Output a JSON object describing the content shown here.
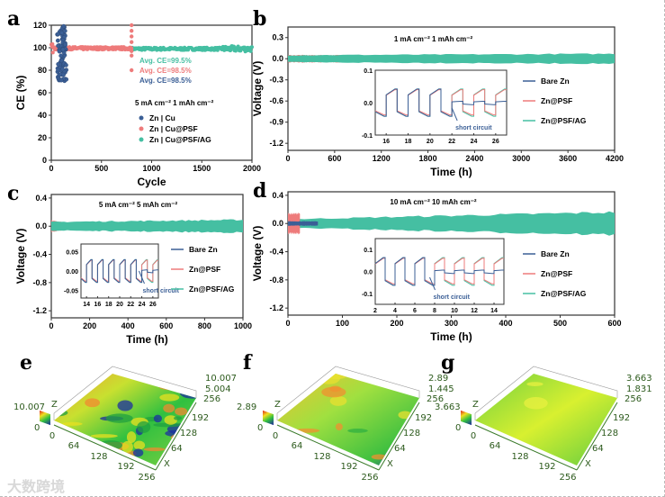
{
  "watermark": "大数跨境",
  "colors": {
    "bare": "#3b5f96",
    "psf": "#ee7b7b",
    "ag": "#45bfa2"
  },
  "chart_data": [
    {
      "panel": "a",
      "type": "scatter",
      "xlabel": "Cycle",
      "ylabel": "CE (%)",
      "xlim": [
        0,
        2000
      ],
      "ylim": [
        0,
        120
      ],
      "xticks": [
        "0",
        "500",
        "1000",
        "1500",
        "2000"
      ],
      "yticks": [
        "0",
        "20",
        "40",
        "60",
        "80",
        "100",
        "120"
      ],
      "condition": "5 mA cm⁻²  1 mAh cm⁻²",
      "annotations": [
        {
          "text": "Avg. CE=99.5%",
          "series": "ag"
        },
        {
          "text": "Avg. CE=98.5%",
          "series": "psf"
        },
        {
          "text": "Avg. CE=98.5%",
          "series": "bare"
        }
      ],
      "legend_position": "lower-middle",
      "series": [
        {
          "key": "bare",
          "name": "Zn | Cu",
          "cycles": [
            0,
            150
          ],
          "ce_range": [
            70,
            120
          ],
          "avg_ce": 98.5
        },
        {
          "key": "psf",
          "name": "Zn | Cu@PSF",
          "cycles": [
            0,
            800
          ],
          "ce_range": [
            80,
            120
          ],
          "avg_ce": 98.5,
          "outliers_at_cycle": 800,
          "outlier_values": [
            80,
            93,
            97,
            105,
            110,
            115,
            120
          ]
        },
        {
          "key": "ag",
          "name": "Zn | Cu@PSF/AG",
          "cycles": [
            0,
            2000
          ],
          "ce_range": [
            96,
            102
          ],
          "avg_ce": 99.5
        }
      ]
    },
    {
      "panel": "b",
      "type": "line",
      "xlabel": "Time (h)",
      "ylabel": "Voltage (V)",
      "xlim": [
        0,
        4200
      ],
      "ylim": [
        -1.3,
        0.45
      ],
      "xticks": [
        "0",
        "600",
        "1200",
        "1800",
        "2400",
        "3000",
        "3600",
        "4200"
      ],
      "yticks": [
        "0.3",
        "0.0",
        "-0.3",
        "-0.6",
        "-0.9",
        "-1.2"
      ],
      "condition": "1 mA cm⁻²  1 mAh cm⁻²",
      "legend_position": "right",
      "series": [
        {
          "key": "bare",
          "name": "Bare Zn",
          "t_end": 20,
          "amplitude": [
            0.04,
            0.04
          ]
        },
        {
          "key": "psf",
          "name": "Zn@PSF",
          "t_end": 720,
          "amplitude": [
            0.05,
            0.05
          ]
        },
        {
          "key": "ag",
          "name": "Zn@PSF/AG",
          "t_end": 4200,
          "amplitude": [
            0.05,
            0.07
          ]
        }
      ],
      "inset": {
        "xlim": [
          15,
          27
        ],
        "ylim": [
          -0.1,
          0.1
        ],
        "xticks": [
          "16",
          "18",
          "20",
          "22",
          "24",
          "26"
        ],
        "yticks": [
          "0.1",
          "0.0",
          "-0.1"
        ],
        "annotation": "short circuit",
        "short_circuit_time": 22
      }
    },
    {
      "panel": "c",
      "type": "line",
      "xlabel": "Time (h)",
      "ylabel": "Voltage (V)",
      "xlim": [
        0,
        1000
      ],
      "ylim": [
        -1.3,
        0.45
      ],
      "xticks": [
        "0",
        "200",
        "400",
        "600",
        "800",
        "1000"
      ],
      "yticks": [
        "0.4",
        "0.0",
        "-0.4",
        "-0.8",
        "-1.2"
      ],
      "condition": "5 mA cm⁻²  5 mAh cm⁻²",
      "legend_position": "right",
      "series": [
        {
          "key": "bare",
          "name": "Bare Zn",
          "t_end": 40,
          "amplitude": [
            0.06,
            0.06
          ]
        },
        {
          "key": "psf",
          "name": "Zn@PSF",
          "t_end": 70,
          "amplitude": [
            0.08,
            0.05
          ]
        },
        {
          "key": "ag",
          "name": "Zn@PSF/AG",
          "t_end": 1000,
          "amplitude": [
            0.06,
            0.09
          ]
        }
      ],
      "inset": {
        "xlim": [
          13,
          27
        ],
        "ylim": [
          -0.07,
          0.07
        ],
        "xticks": [
          "14",
          "16",
          "18",
          "20",
          "22",
          "24",
          "26"
        ],
        "yticks": [
          "0.05",
          "0.00",
          "-0.05"
        ],
        "annotation": "short circuit",
        "short_circuit_time": 23.5
      }
    },
    {
      "panel": "d",
      "type": "line",
      "xlabel": "Time (h)",
      "ylabel": "Voltage (V)",
      "xlim": [
        0,
        600
      ],
      "ylim": [
        -1.3,
        0.45
      ],
      "xticks": [
        "0",
        "100",
        "200",
        "300",
        "400",
        "500",
        "600"
      ],
      "yticks": [
        "0.4",
        "0.0",
        "-0.4",
        "-0.8",
        "-1.2"
      ],
      "condition": "10 mA cm⁻²  10 mAh cm⁻²",
      "legend_position": "right",
      "series": [
        {
          "key": "ag",
          "name": "Zn@PSF/AG",
          "t_end": 600,
          "amplitude": [
            0.06,
            0.16
          ]
        },
        {
          "key": "psf",
          "name": "Zn@PSF",
          "t_end": 22,
          "amplitude": [
            0.14,
            0.14
          ]
        },
        {
          "key": "bare",
          "name": "Bare Zn",
          "t_end": 55,
          "amplitude": [
            0.03,
            0.03
          ]
        }
      ],
      "inset": {
        "xlim": [
          2,
          15
        ],
        "ylim": [
          -0.15,
          0.15
        ],
        "xticks": [
          "2",
          "4",
          "6",
          "8",
          "10",
          "12",
          "14"
        ],
        "yticks": [
          "0.1",
          "0.0",
          "-0.1"
        ],
        "annotation": "short circuit",
        "short_circuit_time": 7.5
      }
    },
    {
      "panel": "e",
      "type": "heatmap",
      "z_max": "10.007",
      "z_mid": "5.004",
      "z_min": "0",
      "z_label": "Z",
      "x_label": "X",
      "xy_ticks": [
        "0",
        "64",
        "128",
        "192",
        "256"
      ],
      "surface": "rough"
    },
    {
      "panel": "f",
      "type": "heatmap",
      "z_max": "2.89",
      "z_mid": "1.445",
      "z_min": "0",
      "z_label": "Z",
      "x_label": "X",
      "xy_ticks": [
        "0",
        "64",
        "128",
        "192",
        "256"
      ],
      "surface": "medium"
    },
    {
      "panel": "g",
      "type": "heatmap",
      "z_max": "3.663",
      "z_mid": "1.831",
      "z_min": "0",
      "z_label": "Z",
      "x_label": "X",
      "xy_ticks": [
        "0",
        "64",
        "128",
        "192",
        "256"
      ],
      "surface": "smooth"
    }
  ]
}
